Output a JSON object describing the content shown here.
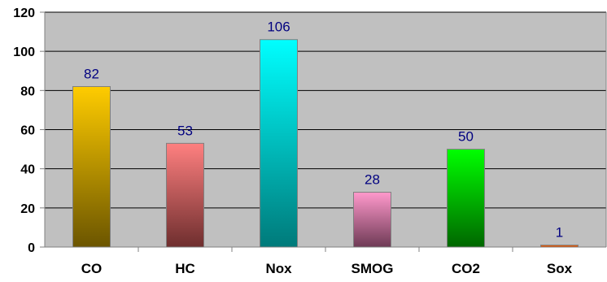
{
  "chart_data": {
    "type": "bar",
    "categories": [
      "CO",
      "HC",
      "Nox",
      "SMOG",
      "CO2",
      "Sox"
    ],
    "values": [
      82,
      53,
      106,
      28,
      50,
      1
    ],
    "data_labels": [
      "82",
      "53",
      "106",
      "28",
      "50",
      "1"
    ],
    "title": "",
    "xlabel": "",
    "ylabel": "",
    "ylim": [
      0,
      120
    ],
    "yticks": [
      "0",
      "20",
      "40",
      "60",
      "80",
      "100",
      "120"
    ],
    "grid": true,
    "legend": "none",
    "plot_background": "#c0c0c0",
    "bar_colors": [
      [
        "#ffcc00",
        "#6b5500"
      ],
      [
        "#ff8080",
        "#6e2e2e"
      ],
      [
        "#00ffff",
        "#007a7a"
      ],
      [
        "#ff99cc",
        "#6e3a55"
      ],
      [
        "#00ff00",
        "#006600"
      ],
      [
        "#ff6600",
        "#cc4400"
      ]
    ]
  }
}
